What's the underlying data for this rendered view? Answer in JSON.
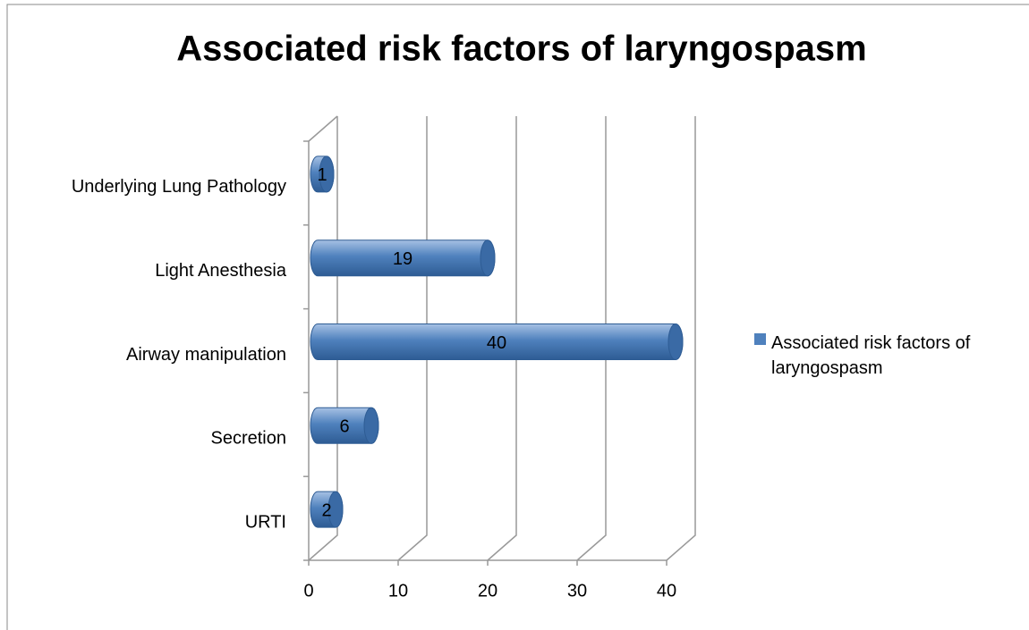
{
  "chart_data": {
    "type": "bar3d",
    "orientation": "horizontal",
    "title": "Associated risk factors of laryngospasm",
    "categories": [
      "URTI",
      "Secretion",
      "Airway manipulation",
      "Light Anesthesia",
      "Underlying Lung Pathology"
    ],
    "series": [
      {
        "name": "Associated risk factors of laryngospasm",
        "color": "#4f81bd",
        "values": [
          2,
          6,
          40,
          19,
          1
        ]
      }
    ],
    "xlim": [
      0,
      40
    ],
    "xticks": [
      0,
      10,
      20,
      30,
      40
    ],
    "grid": true,
    "legend": "right"
  }
}
